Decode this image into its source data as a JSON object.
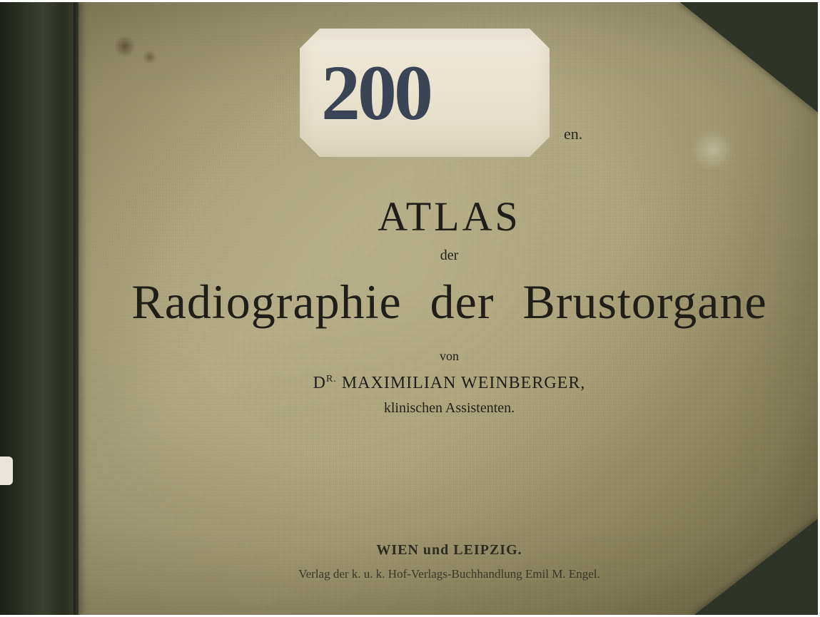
{
  "sticker": {
    "number": "200"
  },
  "partial_text": "en.",
  "title": {
    "atlas": "ATLAS",
    "der": "der",
    "main": "Radiographie der Brustorgane",
    "von": "von",
    "author_prefix": "D",
    "author_super": "R.",
    "author_name": " MAXIMILIAN WEINBERGER,",
    "role": "klinischen Assistenten."
  },
  "publisher": {
    "city": "WIEN und LEIPZIG.",
    "line": "Verlag der k. u. k. Hof-Verlags-Buchhandlung Emil M. Engel."
  },
  "colors": {
    "cloth_base": "#a8a078",
    "spine": "#2d3226",
    "corner": "#2f3428",
    "sticker_bg": "#e8e1cc",
    "sticker_num": "#3a4454",
    "ink": "#1f1f18"
  }
}
